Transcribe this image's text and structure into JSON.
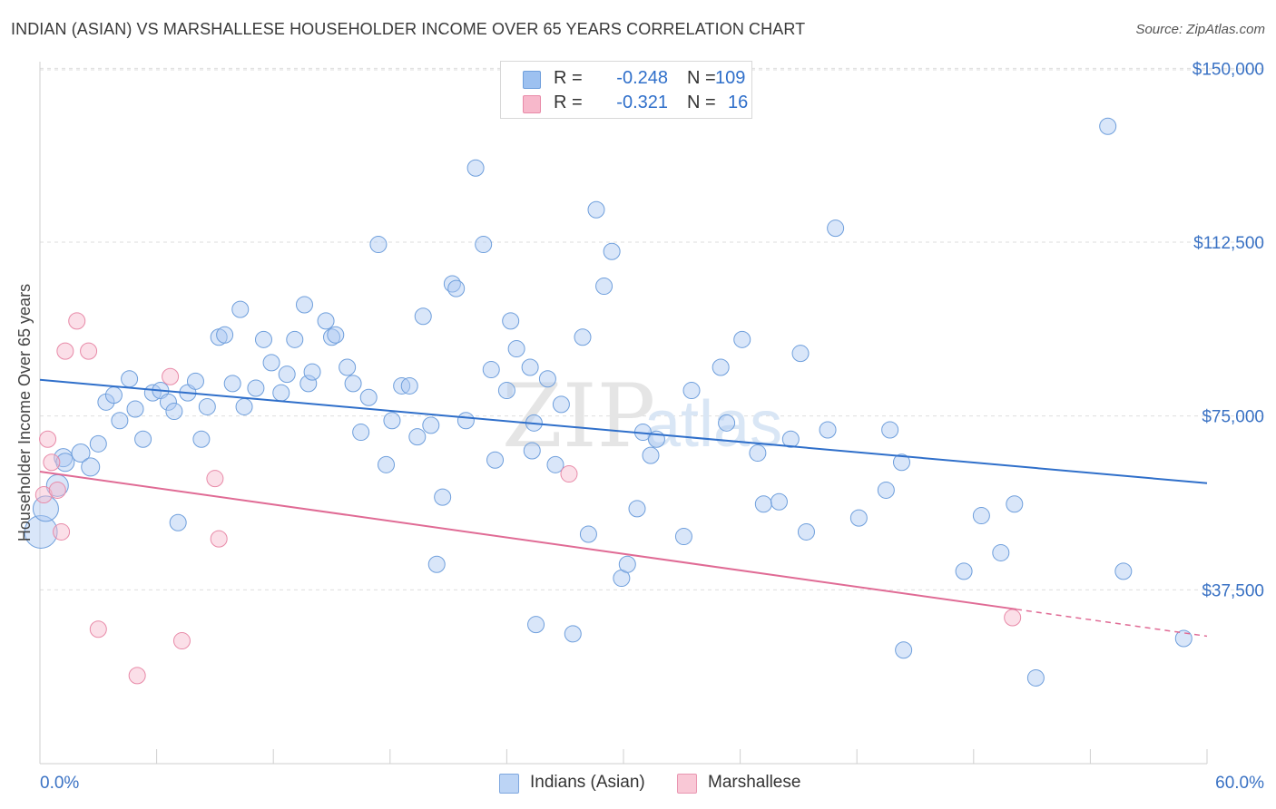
{
  "header": {
    "title": "INDIAN (ASIAN) VS MARSHALLESE HOUSEHOLDER INCOME OVER 65 YEARS CORRELATION CHART",
    "source": "Source: ZipAtlas.com"
  },
  "watermark": {
    "part1": "ZIP",
    "part2": "atlas"
  },
  "legend": {
    "rows": [
      {
        "r_label": "R =",
        "r_value": "-0.248",
        "n_label": "N =",
        "n_value": "109",
        "color": "#9dc1f0",
        "border": "#6f9fdc"
      },
      {
        "r_label": "R =",
        "r_value": "-0.321",
        "n_label": "N =",
        "n_value": "16",
        "color": "#f7b8cb",
        "border": "#e88aa8"
      }
    ]
  },
  "bottom_legend": [
    {
      "label": "Indians (Asian)",
      "color": "#bcd4f5",
      "border": "#7ea7df"
    },
    {
      "label": "Marshallese",
      "color": "#f9c8d6",
      "border": "#e996b1"
    }
  ],
  "chart_data": {
    "type": "scatter",
    "title": "INDIAN (ASIAN) VS MARSHALLESE HOUSEHOLDER INCOME OVER 65 YEARS CORRELATION CHART",
    "xlabel": "",
    "ylabel": "Householder Income Over 65 years",
    "xlim": [
      0,
      60
    ],
    "ylim": [
      0,
      153000
    ],
    "x_tick_labels": [
      "0.0%",
      "60.0%"
    ],
    "y_ticks": [
      37500,
      75000,
      112500,
      150000
    ],
    "y_tick_labels": [
      "$37,500",
      "$75,000",
      "$112,500",
      "$150,000"
    ],
    "grid": "horizontal dashed",
    "colors": {
      "indians": "#2f6fca",
      "marshallese": "#e06b95",
      "tick_label": "#3a72c4"
    },
    "series": [
      {
        "name": "Indians (Asian)",
        "trend": {
          "x": [
            0,
            60
          ],
          "y": [
            82800,
            60500
          ],
          "solid_until": 60
        },
        "points": [
          [
            0.05,
            50000,
            18
          ],
          [
            0.3,
            55000,
            14
          ],
          [
            0.9,
            60000,
            12
          ],
          [
            1.2,
            66000,
            10
          ],
          [
            1.3,
            65000,
            10
          ],
          [
            2.1,
            67000,
            10
          ],
          [
            2.6,
            64000,
            10
          ],
          [
            3.0,
            69000,
            9
          ],
          [
            3.4,
            78000,
            9
          ],
          [
            3.8,
            79500,
            9
          ],
          [
            4.1,
            74000,
            9
          ],
          [
            4.6,
            83000,
            9
          ],
          [
            4.9,
            76500,
            9
          ],
          [
            5.3,
            70000,
            9
          ],
          [
            5.8,
            80000,
            9
          ],
          [
            6.2,
            80500,
            9
          ],
          [
            6.6,
            78000,
            9
          ],
          [
            6.9,
            76000,
            9
          ],
          [
            7.1,
            52000,
            9
          ],
          [
            7.6,
            80000,
            9
          ],
          [
            8.0,
            82500,
            9
          ],
          [
            8.3,
            70000,
            9
          ],
          [
            8.6,
            77000,
            9
          ],
          [
            9.2,
            92000,
            9
          ],
          [
            9.5,
            92500,
            9
          ],
          [
            9.9,
            82000,
            9
          ],
          [
            10.3,
            98000,
            9
          ],
          [
            10.5,
            77000,
            9
          ],
          [
            11.1,
            81000,
            9
          ],
          [
            11.5,
            91500,
            9
          ],
          [
            11.9,
            86500,
            9
          ],
          [
            12.4,
            80000,
            9
          ],
          [
            12.7,
            84000,
            9
          ],
          [
            13.1,
            91500,
            9
          ],
          [
            13.6,
            99000,
            9
          ],
          [
            13.8,
            82000,
            9
          ],
          [
            14.0,
            84500,
            9
          ],
          [
            14.7,
            95500,
            9
          ],
          [
            15.0,
            92000,
            9
          ],
          [
            15.2,
            92500,
            9
          ],
          [
            15.8,
            85500,
            9
          ],
          [
            16.1,
            82000,
            9
          ],
          [
            16.5,
            71500,
            9
          ],
          [
            16.9,
            79000,
            9
          ],
          [
            17.4,
            112000,
            9
          ],
          [
            17.8,
            64500,
            9
          ],
          [
            18.1,
            74000,
            9
          ],
          [
            18.6,
            81500,
            9
          ],
          [
            19.0,
            81500,
            9
          ],
          [
            19.4,
            70500,
            9
          ],
          [
            19.7,
            96500,
            9
          ],
          [
            20.1,
            73000,
            9
          ],
          [
            20.7,
            57500,
            9
          ],
          [
            20.4,
            43000,
            9
          ],
          [
            21.2,
            103500,
            9
          ],
          [
            21.4,
            102500,
            9
          ],
          [
            21.9,
            74000,
            9
          ],
          [
            22.4,
            128500,
            9
          ],
          [
            22.8,
            112000,
            9
          ],
          [
            23.2,
            85000,
            9
          ],
          [
            23.4,
            65500,
            9
          ],
          [
            24.0,
            80500,
            9
          ],
          [
            24.2,
            95500,
            9
          ],
          [
            24.5,
            89500,
            9
          ],
          [
            25.2,
            85500,
            9
          ],
          [
            25.3,
            67500,
            9
          ],
          [
            25.4,
            73500,
            9
          ],
          [
            25.5,
            30000,
            9
          ],
          [
            26.1,
            83000,
            9
          ],
          [
            26.5,
            64500,
            9
          ],
          [
            26.8,
            77500,
            9
          ],
          [
            27.4,
            28000,
            9
          ],
          [
            27.9,
            92000,
            9
          ],
          [
            28.2,
            49500,
            9
          ],
          [
            28.6,
            119500,
            9
          ],
          [
            29.0,
            103000,
            9
          ],
          [
            29.4,
            110500,
            9
          ],
          [
            29.9,
            40000,
            9
          ],
          [
            30.2,
            43000,
            9
          ],
          [
            30.7,
            55000,
            9
          ],
          [
            31.0,
            71500,
            9
          ],
          [
            31.4,
            66500,
            9
          ],
          [
            31.7,
            70000,
            9
          ],
          [
            33.1,
            49000,
            9
          ],
          [
            33.5,
            80500,
            9
          ],
          [
            35.0,
            85500,
            9
          ],
          [
            35.3,
            73500,
            9
          ],
          [
            36.1,
            91500,
            9
          ],
          [
            36.9,
            67000,
            9
          ],
          [
            37.2,
            56000,
            9
          ],
          [
            38.0,
            56500,
            9
          ],
          [
            38.6,
            70000,
            9
          ],
          [
            39.1,
            88500,
            9
          ],
          [
            39.4,
            50000,
            9
          ],
          [
            40.5,
            72000,
            9
          ],
          [
            40.9,
            115500,
            9
          ],
          [
            42.1,
            53000,
            9
          ],
          [
            43.5,
            59000,
            9
          ],
          [
            43.7,
            72000,
            9
          ],
          [
            44.3,
            65000,
            9
          ],
          [
            44.4,
            24500,
            9
          ],
          [
            47.5,
            41500,
            9
          ],
          [
            48.4,
            53500,
            9
          ],
          [
            49.4,
            45500,
            9
          ],
          [
            50.1,
            56000,
            9
          ],
          [
            51.2,
            18500,
            9
          ],
          [
            54.9,
            137500,
            9
          ],
          [
            55.7,
            41500,
            9
          ],
          [
            58.8,
            27000,
            9
          ]
        ]
      },
      {
        "name": "Marshallese",
        "trend": {
          "x": [
            0,
            60
          ],
          "y": [
            63000,
            27500
          ],
          "solid_until": 50.2
        },
        "points": [
          [
            0.2,
            58000,
            9
          ],
          [
            0.4,
            70000,
            9
          ],
          [
            0.6,
            65000,
            9
          ],
          [
            0.9,
            59000,
            9
          ],
          [
            1.1,
            50000,
            9
          ],
          [
            1.3,
            89000,
            9
          ],
          [
            1.9,
            95500,
            9
          ],
          [
            2.5,
            89000,
            9
          ],
          [
            3.0,
            29000,
            9
          ],
          [
            5.0,
            19000,
            9
          ],
          [
            6.7,
            83500,
            9
          ],
          [
            7.3,
            26500,
            9
          ],
          [
            9.0,
            61500,
            9
          ],
          [
            9.2,
            48500,
            9
          ],
          [
            27.2,
            62500,
            9
          ],
          [
            50.0,
            31500,
            9
          ]
        ]
      }
    ]
  }
}
